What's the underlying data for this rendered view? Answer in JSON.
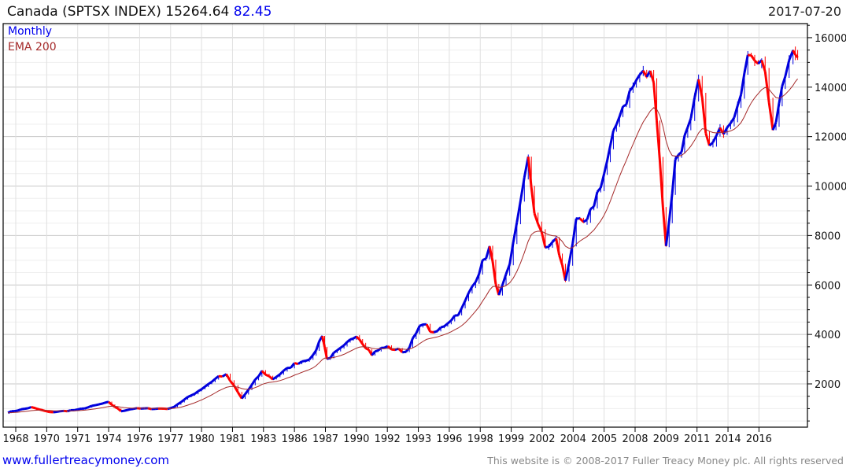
{
  "header": {
    "name": "Canada (SPTSX INDEX)",
    "last": "15264.64",
    "change": "82.45",
    "date": "2017-07-20"
  },
  "footer": {
    "url": "www.fullertreacymoney.com",
    "copyright": "This website is © 2008-2017 Fuller Treacy Money plc. All rights reserved"
  },
  "colors": {
    "up": "#0000dd",
    "down": "#ff0000",
    "ema": "#a52a2a",
    "grid": "#dddddd"
  },
  "chart_data": {
    "type": "line",
    "title": "Canada (SPTSX INDEX)",
    "legend": [
      "Monthly",
      "EMA 200"
    ],
    "legend_placement": "top-left",
    "x_ticks": [
      "1968",
      "1970",
      "1971",
      "1974",
      "1976",
      "1977",
      "1980",
      "1981",
      "1983",
      "1986",
      "1987",
      "1990",
      "1992",
      "1993",
      "1996",
      "1998",
      "1999",
      "2002",
      "2004",
      "2005",
      "2008",
      "2009",
      "2011",
      "2014",
      "2016"
    ],
    "y_ticks": [
      2000,
      4000,
      6000,
      8000,
      10000,
      12000,
      14000,
      16000
    ],
    "ylim": [
      250,
      16570
    ],
    "grid": true,
    "series_note": "approximate monthly price path, x in axis-label units (fractional label index)",
    "price": [
      [
        -0.25,
        850
      ],
      [
        0.5,
        1050
      ],
      [
        1.1,
        850
      ],
      [
        2,
        950
      ],
      [
        2.8,
        1200
      ],
      [
        3,
        1250
      ],
      [
        3.4,
        900
      ],
      [
        3.8,
        1000
      ],
      [
        4.5,
        1000
      ],
      [
        5,
        1000
      ],
      [
        6,
        1800
      ],
      [
        6.55,
        2300
      ],
      [
        6.8,
        2350
      ],
      [
        7.05,
        1900
      ],
      [
        7.3,
        1400
      ],
      [
        7.95,
        2500
      ],
      [
        8.3,
        2200
      ],
      [
        9,
        2800
      ],
      [
        9.6,
        3100
      ],
      [
        9.9,
        4000
      ],
      [
        10.05,
        3000
      ],
      [
        10.6,
        3500
      ],
      [
        11,
        4000
      ],
      [
        11.5,
        3200
      ],
      [
        11.9,
        3500
      ],
      [
        12.6,
        3300
      ],
      [
        13.15,
        4500
      ],
      [
        13.5,
        4000
      ],
      [
        14.4,
        5000
      ],
      [
        15.3,
        7500
      ],
      [
        15.6,
        5500
      ],
      [
        15.95,
        6700
      ],
      [
        16.3,
        9500
      ],
      [
        16.55,
        11000
      ],
      [
        16.75,
        9000
      ],
      [
        17.1,
        7500
      ],
      [
        17.45,
        7800
      ],
      [
        17.75,
        6200
      ],
      [
        18.1,
        8500
      ],
      [
        18.45,
        8500
      ],
      [
        19,
        10500
      ],
      [
        19.5,
        13000
      ],
      [
        20.15,
        14500
      ],
      [
        20.6,
        14500
      ],
      [
        20.8,
        11000
      ],
      [
        21,
        7500
      ],
      [
        21.3,
        11000
      ],
      [
        21.8,
        12500
      ],
      [
        22.05,
        14200
      ],
      [
        22.4,
        11500
      ],
      [
        23.2,
        13000
      ],
      [
        23.75,
        15500
      ],
      [
        24.2,
        14800
      ],
      [
        24.45,
        12000
      ],
      [
        24.85,
        14500
      ],
      [
        25.1,
        15800
      ],
      [
        25.25,
        15200
      ]
    ]
  }
}
